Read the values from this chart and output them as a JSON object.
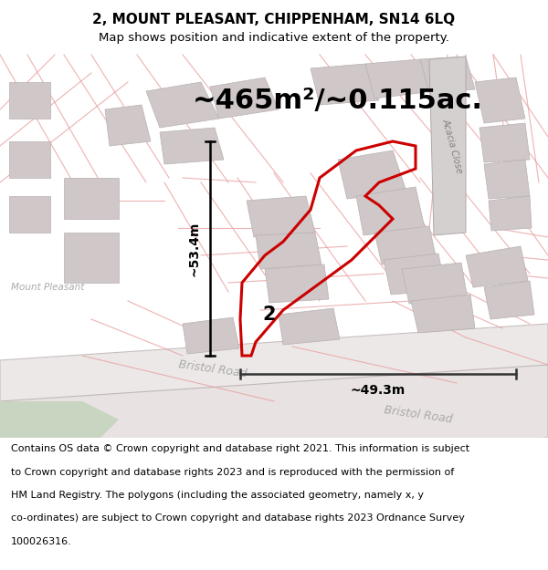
{
  "title": "2, MOUNT PLEASANT, CHIPPENHAM, SN14 6LQ",
  "subtitle": "Map shows position and indicative extent of the property.",
  "area_text": "~465m²/~0.115ac.",
  "width_label": "~49.3m",
  "height_label": "~53.4m",
  "property_number": "2",
  "footer_line1": "Contains OS data © Crown copyright and database right 2021. This information is subject",
  "footer_line2": "to Crown copyright and database rights 2023 and is reproduced with the permission of",
  "footer_line3": "HM Land Registry. The polygons (including the associated geometry, namely x, y",
  "footer_line4": "co-ordinates) are subject to Crown copyright and database rights 2023 Ordnance Survey",
  "footer_line5": "100026316.",
  "property_color": "#cc0000",
  "dim_line_color": "#333333",
  "road_label_color": "#aaaaaa",
  "map_bg": "#f5f0f0",
  "gray_block": "#d0c8c8",
  "pink_line": "#e8a0a0",
  "green_fill": "#c8d5c0",
  "white_road": "#f0ecec",
  "acacia_road_fill": "#d5d0d0",
  "title_fontsize": 11,
  "subtitle_fontsize": 9.5,
  "area_fontsize": 22,
  "footer_fontsize": 8,
  "dim_fontsize": 10,
  "label_fontsize": 9
}
